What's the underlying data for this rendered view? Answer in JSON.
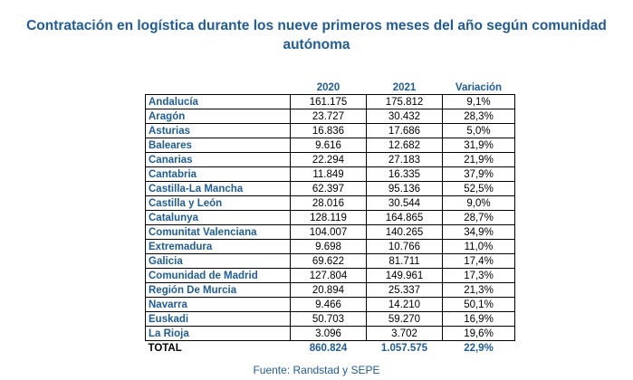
{
  "title": {
    "line1": "Contratación en logística durante los nueve primeros meses del año según comunidad",
    "line2": "autónoma"
  },
  "table": {
    "headers": [
      "",
      "2020",
      "2021",
      "Variación"
    ],
    "rows": [
      {
        "region": "Andalucía",
        "y2020": "161.175",
        "y2021": "175.812",
        "variation": "9,1%"
      },
      {
        "region": "Aragón",
        "y2020": "23.727",
        "y2021": "30.432",
        "variation": "28,3%"
      },
      {
        "region": "Asturias",
        "y2020": "16.836",
        "y2021": "17.686",
        "variation": "5,0%"
      },
      {
        "region": "Baleares",
        "y2020": "9.616",
        "y2021": "12.682",
        "variation": "31,9%"
      },
      {
        "region": "Canarias",
        "y2020": "22.294",
        "y2021": "27.183",
        "variation": "21,9%"
      },
      {
        "region": "Cantabria",
        "y2020": "11.849",
        "y2021": "16.335",
        "variation": "37,9%"
      },
      {
        "region": "Castilla-La Mancha",
        "y2020": "62.397",
        "y2021": "95.136",
        "variation": "52,5%"
      },
      {
        "region": "Castilla y León",
        "y2020": "28.016",
        "y2021": "30.544",
        "variation": "9,0%"
      },
      {
        "region": "Catalunya",
        "y2020": "128.119",
        "y2021": "164.865",
        "variation": "28,7%"
      },
      {
        "region": "Comunitat Valenciana",
        "y2020": "104.007",
        "y2021": "140.265",
        "variation": "34,9%"
      },
      {
        "region": "Extremadura",
        "y2020": "9.698",
        "y2021": "10.766",
        "variation": "11,0%"
      },
      {
        "region": "Galicia",
        "y2020": "69.622",
        "y2021": "81.711",
        "variation": "17,4%"
      },
      {
        "region": "Comunidad de Madrid",
        "y2020": "127.804",
        "y2021": "149.961",
        "variation": "17,3%"
      },
      {
        "region": "Región De Murcia",
        "y2020": "20.894",
        "y2021": "25.337",
        "variation": "21,3%"
      },
      {
        "region": "Navarra",
        "y2020": "9.466",
        "y2021": "14.210",
        "variation": "50,1%"
      },
      {
        "region": "Euskadi",
        "y2020": "50.703",
        "y2021": "59.270",
        "variation": "16,9%"
      },
      {
        "region": "La Rioja",
        "y2020": "3.096",
        "y2021": "3.702",
        "variation": "19,6%"
      }
    ],
    "total": {
      "region": "TOTAL",
      "y2020": "860.824",
      "y2021": "1.057.575",
      "variation": "22,9%"
    }
  },
  "source": "Fuente: Randstad y SEPE",
  "colors": {
    "accent": "#1f5c99",
    "text": "#000000"
  }
}
